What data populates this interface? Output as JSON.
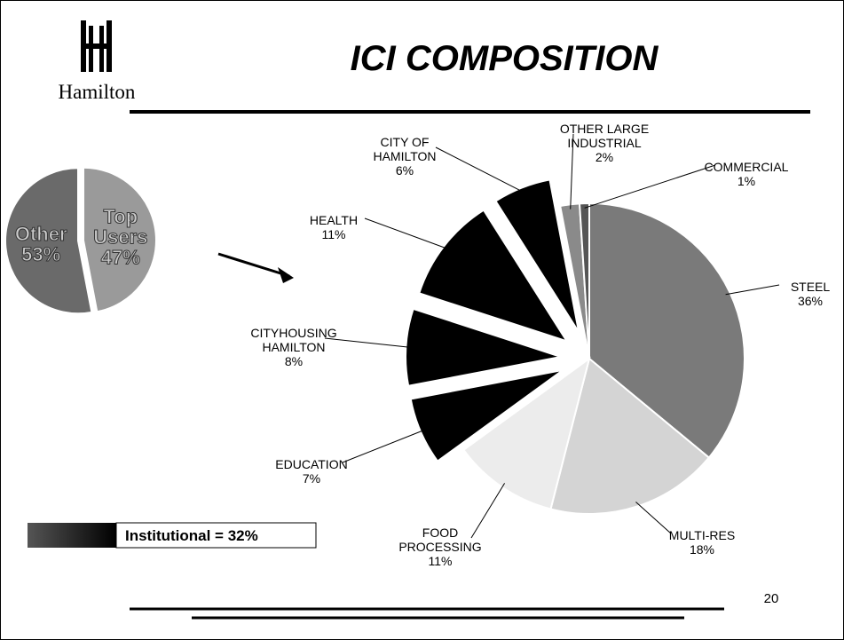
{
  "header": {
    "title": "ICI COMPOSITION",
    "logo": "Hamilton"
  },
  "page_number": 20,
  "chart_data": [
    {
      "type": "pie",
      "categories": [
        "Top Users",
        "Other"
      ],
      "values": [
        47,
        53
      ],
      "value_labels": [
        "47%",
        "53%"
      ],
      "colors": [
        "#9a9a9a",
        "#6a6a6a"
      ]
    },
    {
      "type": "pie",
      "categories": [
        "STEEL",
        "MULTI-RES",
        "FOOD PROCESSING",
        "EDUCATION",
        "CITYHOUSING HAMILTON",
        "HEALTH",
        "CITY OF HAMILTON",
        "OTHER LARGE INDUSTRIAL",
        "COMMERCIAL"
      ],
      "values": [
        36,
        18,
        11,
        7,
        8,
        11,
        6,
        2,
        1
      ],
      "value_labels": [
        "36%",
        "18%",
        "11%",
        "7%",
        "8%",
        "11%",
        "6%",
        "2%",
        "1%"
      ],
      "colors": [
        "#7a7a7a",
        "#d4d4d4",
        "#ececec",
        "#000000",
        "#000000",
        "#000000",
        "#000000",
        "#8a8a8a",
        "#555555"
      ],
      "annotation": "Institutional = 32%",
      "annotation_color": "#000000"
    }
  ]
}
